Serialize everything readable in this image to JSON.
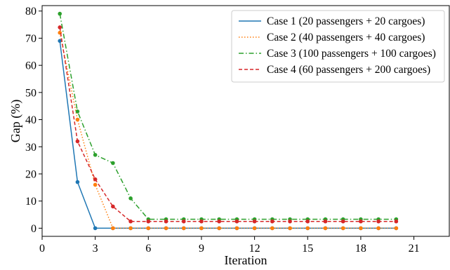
{
  "chart_data": {
    "type": "line",
    "title": "",
    "xlabel": "Iteration",
    "ylabel": "Gap (%)",
    "xlim": [
      0,
      23
    ],
    "ylim": [
      -3,
      82
    ],
    "x_ticks": [
      0,
      3,
      6,
      9,
      12,
      15,
      18,
      21
    ],
    "y_ticks": [
      0,
      10,
      20,
      30,
      40,
      50,
      60,
      70,
      80
    ],
    "grid": false,
    "legend_position": "top-right",
    "series": [
      {
        "name": "Case 1 (20 passengers + 20 cargoes)",
        "color": "#1f77b4",
        "line_style": "solid",
        "x": [
          1,
          2,
          3,
          4,
          5,
          6,
          7,
          8,
          9,
          10,
          11,
          12,
          13,
          14,
          15,
          16,
          17,
          18,
          19,
          20
        ],
        "values": [
          69,
          17,
          0,
          0,
          0,
          0,
          0,
          0,
          0,
          0,
          0,
          0,
          0,
          0,
          0,
          0,
          0,
          0,
          0,
          0
        ]
      },
      {
        "name": "Case 2 (40 passengers + 40 cargoes)",
        "color": "#ff7f0e",
        "line_style": "dotted",
        "x": [
          1,
          2,
          3,
          4,
          5,
          6,
          7,
          8,
          9,
          10,
          11,
          12,
          13,
          14,
          15,
          16,
          17,
          18,
          19,
          20
        ],
        "values": [
          72,
          40,
          16,
          0,
          0,
          0,
          0,
          0,
          0,
          0,
          0,
          0,
          0,
          0,
          0,
          0,
          0,
          0,
          0,
          0
        ]
      },
      {
        "name": "Case 3 (100 passengers + 100 cargoes)",
        "color": "#2ca02c",
        "line_style": "dashdot",
        "x": [
          1,
          2,
          3,
          4,
          5,
          6,
          7,
          8,
          9,
          10,
          11,
          12,
          13,
          14,
          15,
          16,
          17,
          18,
          19,
          20
        ],
        "values": [
          79,
          43,
          27,
          24,
          11,
          3.3,
          3.3,
          3.3,
          3.3,
          3.3,
          3.3,
          3.3,
          3.3,
          3.3,
          3.3,
          3.3,
          3.3,
          3.3,
          3.3,
          3.3
        ]
      },
      {
        "name": "Case 4 (60 passengers + 200 cargoes)",
        "color": "#d62728",
        "line_style": "dashed",
        "x": [
          1,
          2,
          3,
          4,
          5,
          6,
          7,
          8,
          9,
          10,
          11,
          12,
          13,
          14,
          15,
          16,
          17,
          18,
          19,
          20
        ],
        "values": [
          74,
          32,
          18,
          8,
          2.5,
          2.5,
          2.5,
          2.5,
          2.5,
          2.5,
          2.5,
          2.5,
          2.5,
          2.5,
          2.5,
          2.5,
          2.5,
          2.5,
          2.5,
          2.5
        ]
      }
    ]
  }
}
